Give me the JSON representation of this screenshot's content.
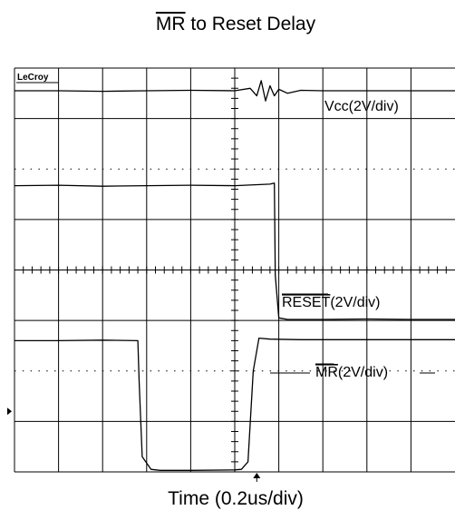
{
  "chart_data": {
    "type": "line",
    "title_overline": "MR",
    "title_rest": " to Reset Delay",
    "xlabel": "Time (0.2us/div)",
    "ylabel": "",
    "brand": "LeCroy",
    "grid": true,
    "divisions": {
      "x": 10,
      "y": 8
    },
    "x_units": "div",
    "y_units": "div",
    "trigger_marker_x_div": 5.5,
    "ground_marker_y_div": 1.2,
    "series": [
      {
        "name": "Vcc",
        "label_overline": "",
        "label_rest": "Vcc(2V/div)",
        "x": [
          0,
          1,
          2,
          3,
          4,
          5,
          5.35,
          5.5,
          5.6,
          5.7,
          5.8,
          5.9,
          6.0,
          6.2,
          6.5,
          7,
          8,
          9,
          10
        ],
        "y": [
          7.55,
          7.55,
          7.54,
          7.55,
          7.56,
          7.55,
          7.6,
          7.45,
          7.75,
          7.35,
          7.65,
          7.45,
          7.58,
          7.5,
          7.56,
          7.55,
          7.55,
          7.55,
          7.55
        ]
      },
      {
        "name": "RESET",
        "label_overline": "RESET",
        "label_rest": "(2V/div)",
        "x": [
          0,
          1,
          2,
          3,
          4,
          5,
          5.8,
          5.9,
          5.92,
          6.0,
          6.2,
          7,
          8,
          9,
          10
        ],
        "y": [
          5.67,
          5.68,
          5.66,
          5.67,
          5.68,
          5.67,
          5.7,
          5.72,
          3.9,
          3.05,
          3.02,
          3.02,
          3.03,
          3.02,
          3.02
        ]
      },
      {
        "name": "MR",
        "label_overline": "MR",
        "label_rest": "(2V/div)",
        "x": [
          0,
          1,
          2,
          2.8,
          2.83,
          2.9,
          3.1,
          3.3,
          4,
          5,
          5.15,
          5.3,
          5.42,
          5.55,
          5.8,
          6.5,
          7,
          8,
          9,
          10
        ],
        "y": [
          2.6,
          2.6,
          2.61,
          2.6,
          1.8,
          0.3,
          0.05,
          0.03,
          0.03,
          0.04,
          0.05,
          0.2,
          2.0,
          2.65,
          2.63,
          2.62,
          2.62,
          2.62,
          2.62,
          2.62
        ]
      }
    ]
  }
}
